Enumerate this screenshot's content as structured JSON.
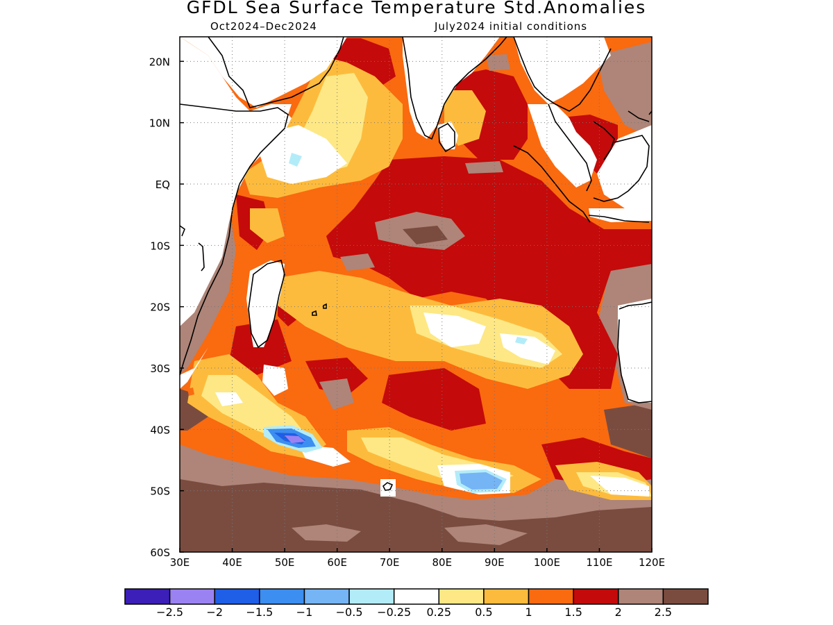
{
  "title": "GFDL Sea Surface Temperature Std.Anomalies",
  "subtitle_left": "Oct2024–Dec2024",
  "subtitle_right": "July2024 initial conditions",
  "axes": {
    "lon_labels": [
      "30E",
      "40E",
      "50E",
      "60E",
      "70E",
      "80E",
      "90E",
      "100E",
      "110E",
      "120E"
    ],
    "lat_labels": [
      "20N",
      "10N",
      "EQ",
      "10S",
      "20S",
      "30S",
      "40S",
      "50S",
      "60S"
    ],
    "lon_range": [
      30,
      120
    ],
    "lat_range": [
      -60,
      24
    ],
    "grid": "dotted"
  },
  "colorbar": {
    "colors": [
      "#3b1fb8",
      "#9b82f2",
      "#1f5ee6",
      "#3c8ef0",
      "#75b4f5",
      "#b3ecf9",
      "#ffffff",
      "#fde885",
      "#fdbb3d",
      "#fa6a0f",
      "#c40a0a",
      "#ae8578",
      "#7a4c40"
    ],
    "labels": [
      "−2.5",
      "−2",
      "−1.5",
      "−1",
      "−0.5",
      "−0.25",
      "0.25",
      "0.5",
      "1",
      "1.5",
      "2",
      "2.5"
    ]
  }
}
